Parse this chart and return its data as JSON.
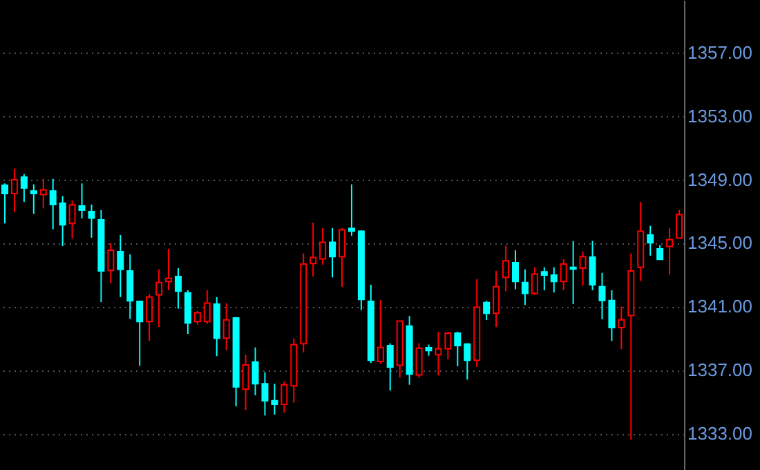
{
  "chart_data": {
    "type": "candlestick",
    "categories": [
      null,
      null,
      null,
      null,
      null,
      null,
      null,
      null,
      null,
      null,
      null,
      null,
      null,
      null,
      null,
      null,
      null,
      null,
      null,
      null,
      null,
      null,
      null,
      null,
      null,
      null,
      null,
      null,
      null,
      null,
      null,
      null,
      null,
      null,
      null,
      null,
      null,
      null,
      null,
      null,
      null,
      null,
      null,
      null,
      null,
      null,
      null,
      null,
      null,
      null,
      null,
      null,
      null,
      null,
      null,
      null,
      null,
      null,
      null,
      null,
      null,
      null,
      null,
      null,
      null,
      null,
      null,
      null,
      null,
      null,
      null
    ],
    "ohlc": [
      [
        1348.63,
        1348.75,
        1346.23,
        1348.11
      ],
      [
        1348.11,
        1349.68,
        1346.95,
        1348.98
      ],
      [
        1349.15,
        1349.33,
        1347.59,
        1348.46
      ],
      [
        1348.28,
        1348.69,
        1346.83,
        1348.11
      ],
      [
        1348.05,
        1349.04,
        1347.18,
        1348.34
      ],
      [
        1348.28,
        1349.04,
        1345.85,
        1347.41
      ],
      [
        1347.5,
        1347.94,
        1344.8,
        1346.14
      ],
      [
        1346.23,
        1347.68,
        1345.27,
        1347.39
      ],
      [
        1347.33,
        1348.75,
        1346.54,
        1347.07
      ],
      [
        1346.98,
        1347.42,
        1345.33,
        1346.57
      ],
      [
        1346.46,
        1347.07,
        1341.27,
        1343.24
      ],
      [
        1343.27,
        1344.98,
        1342.46,
        1344.54
      ],
      [
        1344.46,
        1345.5,
        1341.59,
        1343.33
      ],
      [
        1343.24,
        1344.28,
        1340.22,
        1341.35
      ],
      [
        1341.32,
        1341.32,
        1337.26,
        1340.05
      ],
      [
        1340.05,
        1341.79,
        1338.83,
        1341.59
      ],
      [
        1341.73,
        1343.33,
        1339.7,
        1342.51
      ],
      [
        1342.57,
        1344.63,
        1342.02,
        1342.77
      ],
      [
        1342.89,
        1343.41,
        1340.86,
        1341.96
      ],
      [
        1341.85,
        1342.02,
        1339.27,
        1339.96
      ],
      [
        1340.05,
        1340.72,
        1339.85,
        1340.6
      ],
      [
        1340.05,
        1342.02,
        1339.9,
        1341.21
      ],
      [
        1341.15,
        1341.59,
        1337.87,
        1339.0
      ],
      [
        1339.0,
        1341.21,
        1338.25,
        1340.16
      ],
      [
        1340.28,
        1340.34,
        1334.71,
        1335.93
      ],
      [
        1335.79,
        1337.96,
        1334.48,
        1337.32
      ],
      [
        1337.5,
        1338.42,
        1335.41,
        1336.13
      ],
      [
        1336.13,
        1336.86,
        1334.13,
        1335.06
      ],
      [
        1335.06,
        1336.13,
        1334.19,
        1334.83
      ],
      [
        1334.83,
        1336.28,
        1334.31,
        1336.07
      ],
      [
        1336.0,
        1338.98,
        1334.94,
        1338.6
      ],
      [
        1338.66,
        1344.34,
        1338.11,
        1343.67
      ],
      [
        1343.7,
        1346.28,
        1342.89,
        1344.08
      ],
      [
        1344.0,
        1345.94,
        1343.62,
        1345.04
      ],
      [
        1345.04,
        1345.94,
        1342.83,
        1344.14
      ],
      [
        1344.14,
        1345.94,
        1342.23,
        1345.83
      ],
      [
        1345.91,
        1348.69,
        1345.45,
        1345.74
      ],
      [
        1345.74,
        1345.79,
        1340.77,
        1341.44
      ],
      [
        1341.32,
        1342.37,
        1337.44,
        1337.61
      ],
      [
        1337.53,
        1341.41,
        1337.38,
        1338.42
      ],
      [
        1338.54,
        1338.68,
        1335.7,
        1337.18
      ],
      [
        1337.29,
        1340.08,
        1336.51,
        1340.08
      ],
      [
        1339.76,
        1340.4,
        1336.07,
        1336.74
      ],
      [
        1336.68,
        1338.68,
        1336.51,
        1338.37
      ],
      [
        1338.4,
        1338.6,
        1337.9,
        1338.22
      ],
      [
        1337.96,
        1339.41,
        1336.66,
        1338.34
      ],
      [
        1338.34,
        1339.41,
        1337.67,
        1339.32
      ],
      [
        1339.32,
        1339.41,
        1337.23,
        1338.54
      ],
      [
        1338.63,
        1338.68,
        1336.39,
        1337.61
      ],
      [
        1337.61,
        1342.72,
        1337.18,
        1340.95
      ],
      [
        1341.24,
        1341.35,
        1340.14,
        1340.57
      ],
      [
        1340.57,
        1343.24,
        1339.7,
        1342.25
      ],
      [
        1342.83,
        1344.83,
        1341.96,
        1343.88
      ],
      [
        1343.76,
        1344.54,
        1342.08,
        1342.57
      ],
      [
        1342.51,
        1343.33,
        1341.09,
        1341.82
      ],
      [
        1341.82,
        1343.47,
        1341.73,
        1343.04
      ],
      [
        1343.18,
        1343.47,
        1342.02,
        1342.98
      ],
      [
        1342.98,
        1343.47,
        1341.88,
        1342.57
      ],
      [
        1342.57,
        1343.99,
        1342.02,
        1343.67
      ],
      [
        1343.47,
        1345.12,
        1341.15,
        1343.36
      ],
      [
        1343.41,
        1344.46,
        1342.31,
        1344.14
      ],
      [
        1344.11,
        1345.12,
        1342.02,
        1342.37
      ],
      [
        1342.25,
        1343.12,
        1340.19,
        1341.38
      ],
      [
        1341.38,
        1342.02,
        1338.83,
        1339.67
      ],
      [
        1339.67,
        1341.0,
        1338.31,
        1340.16
      ],
      [
        1340.43,
        1344.34,
        1332.62,
        1343.24
      ],
      [
        1343.47,
        1347.59,
        1342.6,
        1345.74
      ],
      [
        1345.5,
        1346.08,
        1344.2,
        1345.01
      ],
      [
        1344.63,
        1344.86,
        1343.97,
        1343.97
      ],
      [
        1344.78,
        1345.94,
        1343.01,
        1345.21
      ],
      [
        1345.3,
        1347.07,
        1345.3,
        1346.78
      ]
    ],
    "colors": [
      "#00ffff",
      "#ff0000",
      "#00ffff",
      "#00ffff",
      "#ff0000",
      "#00ffff",
      "#00ffff",
      "#ff0000",
      "#00ffff",
      "#00ffff",
      "#00ffff",
      "#ff0000",
      "#00ffff",
      "#00ffff",
      "#00ffff",
      "#ff0000",
      "#ff0000",
      "#ff0000",
      "#00ffff",
      "#00ffff",
      "#ff0000",
      "#ff0000",
      "#00ffff",
      "#ff0000",
      "#00ffff",
      "#ff0000",
      "#00ffff",
      "#00ffff",
      "#00ffff",
      "#ff0000",
      "#ff0000",
      "#ff0000",
      "#ff0000",
      "#ff0000",
      "#00ffff",
      "#ff0000",
      "#00ffff",
      "#00ffff",
      "#00ffff",
      "#ff0000",
      "#00ffff",
      "#ff0000",
      "#00ffff",
      "#ff0000",
      "#00ffff",
      "#ff0000",
      "#ff0000",
      "#00ffff",
      "#00ffff",
      "#ff0000",
      "#00ffff",
      "#ff0000",
      "#ff0000",
      "#00ffff",
      "#00ffff",
      "#ff0000",
      "#00ffff",
      "#00ffff",
      "#ff0000",
      "#00ffff",
      "#ff0000",
      "#00ffff",
      "#00ffff",
      "#00ffff",
      "#ff0000",
      "#ff0000",
      "#ff0000",
      "#00ffff",
      "#00ffff",
      "#ff0000",
      "#ff0000"
    ],
    "ylim": [
      1330.7,
      1360.3
    ],
    "yticks": [
      {
        "value": 1333,
        "label": "1333.00"
      },
      {
        "value": 1337,
        "label": "1337.00"
      },
      {
        "value": 1341,
        "label": "1341.00"
      },
      {
        "value": 1345,
        "label": "1345.00"
      },
      {
        "value": 1349,
        "label": "1349.00"
      },
      {
        "value": 1353,
        "label": "1353.00"
      },
      {
        "value": 1357,
        "label": "1357.00"
      }
    ],
    "grid": "y",
    "tick_labels": "y"
  }
}
